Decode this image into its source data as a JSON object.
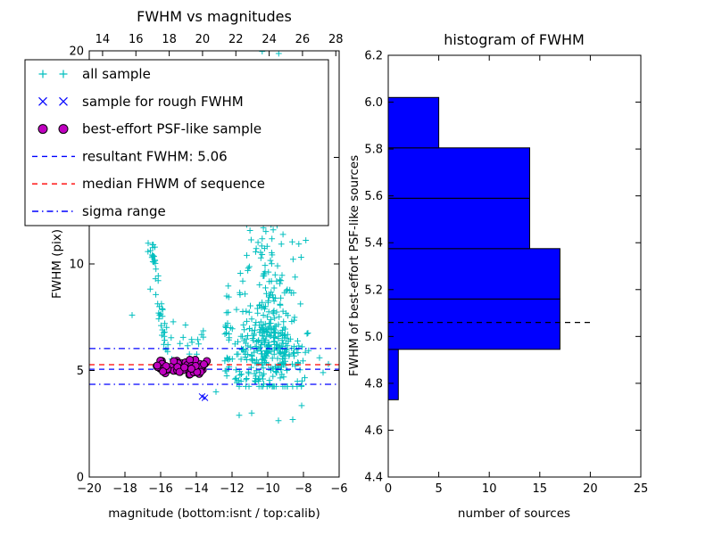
{
  "chart_data": [
    {
      "type": "scatter",
      "title": "FWHM vs magnitudes",
      "xlabel": "magnitude (bottom:isnt / top:calib)",
      "ylabel": "FWHM (pix)",
      "xlim": [
        -20,
        -6
      ],
      "ylim": [
        0,
        20
      ],
      "xticks": [
        -20,
        -18,
        -16,
        -14,
        -12,
        -10,
        -8,
        -6
      ],
      "xtick_labels": [
        "−20",
        "−18",
        "−16",
        "−14",
        "−12",
        "−10",
        "−8",
        "−6"
      ],
      "yticks": [
        0,
        5,
        10,
        15,
        20
      ],
      "ytick_labels": [
        "0",
        "5",
        "10",
        "15",
        "20"
      ],
      "top_axis": {
        "lim": [
          13.2,
          28.2
        ],
        "ticks": [
          14,
          16,
          18,
          20,
          22,
          24,
          26,
          28
        ],
        "tick_labels": [
          "14",
          "16",
          "18",
          "20",
          "22",
          "24",
          "26",
          "28"
        ]
      },
      "hlines": [
        {
          "label": "resultant FWHM: 5.06",
          "y": 5.06,
          "color": "#0000ff",
          "dash": "dashed"
        },
        {
          "label": "median FHWM of sequence",
          "y": 5.27,
          "color": "#ff0000",
          "dash": "dashed"
        },
        {
          "label": "sigma range upper",
          "y": 6.03,
          "color": "#0000ff",
          "dash": "dashdot"
        },
        {
          "label": "sigma range lower",
          "y": 4.35,
          "color": "#0000ff",
          "dash": "dashdot"
        }
      ],
      "series": [
        {
          "name": "all sample",
          "marker": "plus",
          "color": "#00bfbf",
          "clusters": [
            {
              "type": "gauss",
              "n": 250,
              "cx": -9.9,
              "cy": 5.7,
              "sx": 1.0,
              "sy": 1.05,
              "ymin": 4.25,
              "ymax": 20
            },
            {
              "type": "power_column",
              "n": 160,
              "cx": -9.9,
              "sx": 0.75,
              "y0": 6.6,
              "y1": 14.6,
              "exp": 1.6
            },
            {
              "type": "power_column",
              "n": 22,
              "cx": -9.3,
              "sx": 0.9,
              "y0": 13.5,
              "y1": 20,
              "exp": 1.0
            },
            {
              "type": "arc",
              "n": 46,
              "xBase": -15.25,
              "bend": 1.2,
              "y0": 5.4,
              "y1": 11.0
            },
            {
              "type": "uniform",
              "n": 20,
              "x0": -15.7,
              "x1": -13.6,
              "y0": 4.8,
              "y1": 7.4
            },
            {
              "type": "gauss",
              "n": 24,
              "cx": -12.25,
              "cy": 6.9,
              "sx": 0.13,
              "sy": 1.35,
              "ymin": 4.75,
              "ymax": 9.3
            },
            {
              "type": "uniform",
              "n": 16,
              "x0": -11.9,
              "x1": -10.3,
              "y0": 4.4,
              "y1": 6.4
            },
            {
              "type": "points",
              "pts": [
                [
                  -17.6,
                  7.6
                ],
                [
                  -10.9,
                  3.0
                ],
                [
                  -9.4,
                  2.65
                ],
                [
                  -8.1,
                  3.35
                ],
                [
                  -12.9,
                  4.0
                ],
                [
                  -11.6,
                  2.9
                ],
                [
                  -6.9,
                  4.9
                ],
                [
                  -6.6,
                  5.3
                ],
                [
                  -7.1,
                  5.6
                ],
                [
                  -8.6,
                  2.7
                ]
              ]
            }
          ]
        },
        {
          "name": "sample for rough FWHM",
          "marker": "x",
          "color": "#0000ff",
          "clusters": [
            {
              "type": "points",
              "pts": [
                [
                  -13.68,
                  3.78
                ],
                [
                  -13.52,
                  3.72
                ]
              ]
            }
          ]
        },
        {
          "name": "best-effort PSF-like sample",
          "marker": "circle",
          "color": "#bf00bf",
          "edge_color": "#000000",
          "clusters": [
            {
              "type": "band",
              "n": 80,
              "x0": -16.25,
              "x1": -13.4,
              "cy": 5.17,
              "sy": 0.17,
              "ymin": 4.78,
              "ymax": 5.62
            }
          ]
        }
      ],
      "legend": [
        {
          "label": "all sample",
          "kind": "marker",
          "marker": "plus",
          "color": "#00bfbf"
        },
        {
          "label": "sample for rough FWHM",
          "kind": "marker",
          "marker": "x",
          "color": "#0000ff"
        },
        {
          "label": "best-effort PSF-like sample",
          "kind": "marker",
          "marker": "circle",
          "color": "#bf00bf",
          "edge_color": "#000000"
        },
        {
          "label": "resultant FWHM: 5.06",
          "kind": "line",
          "dash": "dashed",
          "color": "#0000ff"
        },
        {
          "label": "median FHWM of sequence",
          "kind": "line",
          "dash": "dashed",
          "color": "#ff0000"
        },
        {
          "label": "sigma range",
          "kind": "line",
          "dash": "dashdot",
          "color": "#0000ff"
        }
      ]
    },
    {
      "type": "bar",
      "orientation": "horizontal",
      "title": "histogram of FWHM",
      "xlabel": "number of sources",
      "ylabel": "FWHM of best-effort PSF-like sources",
      "xlim": [
        0,
        25
      ],
      "ylim": [
        4.4,
        6.2
      ],
      "xticks": [
        0,
        5,
        10,
        15,
        20,
        25
      ],
      "xtick_labels": [
        "0",
        "5",
        "10",
        "15",
        "20",
        "25"
      ],
      "yticks": [
        4.4,
        4.6,
        4.8,
        5.0,
        5.2,
        5.4,
        5.6,
        5.8,
        6.0,
        6.2
      ],
      "ytick_labels": [
        "4.4",
        "4.6",
        "4.8",
        "5.0",
        "5.2",
        "5.4",
        "5.6",
        "5.8",
        "6.0",
        "6.2"
      ],
      "bin_edges": [
        4.73,
        4.945,
        5.16,
        5.375,
        5.59,
        5.805,
        6.02
      ],
      "counts": [
        1,
        17,
        17,
        14,
        14,
        5
      ],
      "bar_color": "#0000ff",
      "bar_edge_color": "#000000",
      "marker_line": {
        "label": "resultant FWHM",
        "y": 5.06,
        "x_end": 20,
        "color": "#000000",
        "dash": "dashed"
      }
    }
  ]
}
